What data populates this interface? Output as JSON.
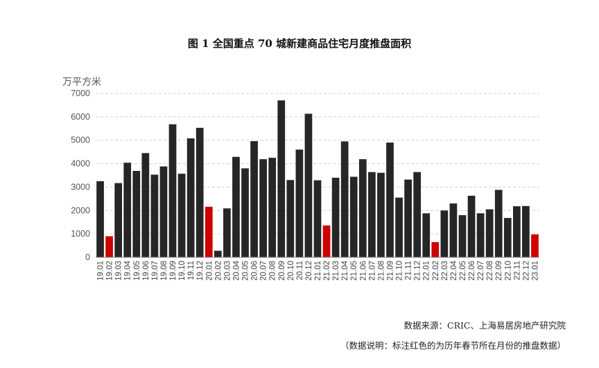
{
  "title": "图 1   全国重点 70 城新建商品住宅月度推盘面积",
  "source": "数据来源：CRIC、上海易居房地产研究院",
  "note": "（数据说明：标注红色的为历年春节所在月份的推盘数据）",
  "colors": {
    "bar": "#262626",
    "highlight": "#cc0000",
    "grid": "#d0d0d0",
    "axis": "#888888"
  },
  "chart_data": {
    "type": "bar",
    "title": "图 1   全国重点 70 城新建商品住宅月度推盘面积",
    "ylabel": "万平方米",
    "xlabel": "",
    "ylim": [
      0,
      7000
    ],
    "yticks": [
      0,
      1000,
      2000,
      3000,
      4000,
      5000,
      6000,
      7000
    ],
    "grid": true,
    "categories": [
      "19.01",
      "19.02",
      "19.03",
      "19.04",
      "19.05",
      "19.06",
      "19.07",
      "19.08",
      "19.09",
      "19.10",
      "19.11",
      "19.12",
      "20.01",
      "20.02",
      "20.03",
      "20.04",
      "20.05",
      "20.06",
      "20.07",
      "20.08",
      "20.09",
      "20.10",
      "20.11",
      "20.12",
      "21.01",
      "21.02",
      "21.03",
      "21.04",
      "21.05",
      "21.06",
      "21.07",
      "21.08",
      "21.09",
      "21.10",
      "21.11",
      "21.12",
      "22.01",
      "22.02",
      "22.03",
      "22.04",
      "22.05",
      "22.06",
      "22.07",
      "22.08",
      "22.09",
      "22.10",
      "22.11",
      "22.12",
      "23.01"
    ],
    "values": [
      3250,
      900,
      3170,
      4040,
      3690,
      4450,
      3530,
      3880,
      5680,
      3570,
      5080,
      5530,
      2160,
      280,
      2090,
      4290,
      3800,
      4960,
      4190,
      4250,
      6700,
      3300,
      4600,
      6130,
      3290,
      1360,
      3400,
      4950,
      3440,
      4190,
      3640,
      3610,
      4900,
      2550,
      3320,
      3640,
      1880,
      650,
      2000,
      2300,
      1800,
      2630,
      1880,
      2050,
      2880,
      1680,
      2180,
      2190,
      980
    ],
    "highlight_categories": [
      "19.02",
      "20.01",
      "21.02",
      "22.02",
      "23.01"
    ]
  }
}
